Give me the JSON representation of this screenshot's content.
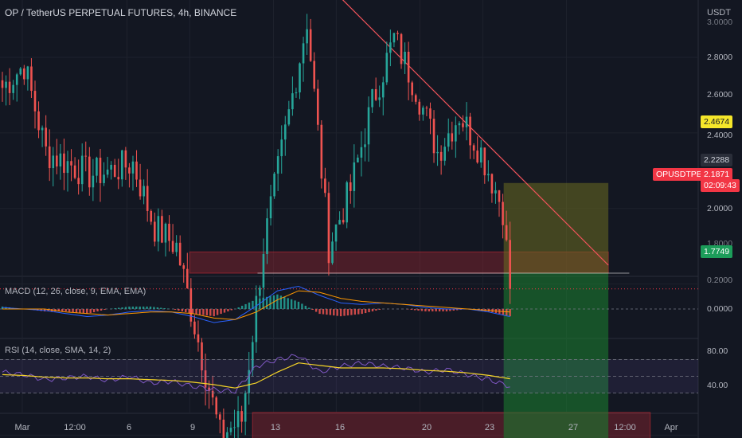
{
  "header": {
    "title": "OP / TetherUS PERPETUAL FUTURES, 4h, BINANCE",
    "currency": "USDT"
  },
  "price_axis": {
    "ticks": [
      "2.8000",
      "2.6000",
      "2.4000",
      "2.0000",
      "1.8000"
    ],
    "clipped_top_tick": "3.0000"
  },
  "price_tags": {
    "target": {
      "value": "2.4674",
      "color": "#f5e62a"
    },
    "entry": {
      "value": "2.2288",
      "color": "#2a2e39"
    },
    "symbol": {
      "name": "OPUSDTPERP",
      "price": "2.1871",
      "countdown": "02:09:43",
      "color": "#f23645"
    },
    "stop": {
      "value": "1.7749",
      "color": "#1c9d5a"
    }
  },
  "macd": {
    "label": "MACD (12, 26, close, 9, EMA, EMA)",
    "ticks": [
      "0.2000",
      "0.0000"
    ]
  },
  "rsi": {
    "label": "RSI (14, close, SMA, 14, 2)",
    "ticks": [
      "80.00",
      "40.00"
    ]
  },
  "time_axis": {
    "labels": [
      "Mar",
      "12:00",
      "6",
      "9",
      "13",
      "16",
      "20",
      "23",
      "27",
      "12:00",
      "Apr"
    ]
  },
  "colors": {
    "bull": "#26a69a",
    "bear": "#ef5350",
    "trendline": "#f2545b",
    "macd_line": "#2962ff",
    "signal_line": "#ff9800",
    "rsi_line": "#7e57c2",
    "rsi_ma": "#f5d428",
    "zone_red": "#b22833",
    "zone_green": "#1b7a2e",
    "zone_olive": "#6b6b20"
  },
  "chart_data": [
    {
      "type": "candlestick",
      "title": "OP / TetherUS PERPETUAL FUTURES, 4h, BINANCE",
      "interval": "4h",
      "ylim": [
        1.65,
        3.05
      ],
      "last_price": 2.1871,
      "close_path": [
        {
          "date": "2023-03-01",
          "close": 2.72
        },
        {
          "date": "2023-03-02",
          "close": 2.78
        },
        {
          "date": "2023-03-03",
          "close": 2.55
        },
        {
          "date": "2023-03-04",
          "close": 2.52
        },
        {
          "date": "2023-03-05",
          "close": 2.49
        },
        {
          "date": "2023-03-06",
          "close": 2.5
        },
        {
          "date": "2023-03-07",
          "close": 2.52
        },
        {
          "date": "2023-03-08",
          "close": 2.35
        },
        {
          "date": "2023-03-09",
          "close": 2.3
        },
        {
          "date": "2023-03-10",
          "close": 2.05
        },
        {
          "date": "2023-03-11",
          "close": 1.8
        },
        {
          "date": "2023-03-12",
          "close": 1.84
        },
        {
          "date": "2023-03-13",
          "close": 2.3
        },
        {
          "date": "2023-03-14",
          "close": 2.6
        },
        {
          "date": "2023-03-15",
          "close": 2.9
        },
        {
          "date": "2023-03-16",
          "close": 2.3
        },
        {
          "date": "2023-03-17",
          "close": 2.45
        },
        {
          "date": "2023-03-18",
          "close": 2.68
        },
        {
          "date": "2023-03-19",
          "close": 2.85
        },
        {
          "date": "2023-03-20",
          "close": 2.72
        },
        {
          "date": "2023-03-21",
          "close": 2.55
        },
        {
          "date": "2023-03-22",
          "close": 2.65
        },
        {
          "date": "2023-03-23",
          "close": 2.55
        },
        {
          "date": "2023-03-24",
          "close": 2.4
        },
        {
          "date": "2023-03-24",
          "close": 2.1871
        }
      ],
      "trendline": [
        {
          "date": "2023-03-14",
          "price": 3.08
        },
        {
          "date": "2023-03-29",
          "price": 2.25
        }
      ],
      "zones": [
        {
          "name": "resistance",
          "from": 2.2288,
          "to": 2.285
        },
        {
          "name": "support",
          "from": 1.7749,
          "to": 1.86
        },
        {
          "name": "take-profit",
          "from": 2.2288,
          "to": 2.4674
        },
        {
          "name": "loss",
          "from": 1.7749,
          "to": 2.2288
        }
      ]
    },
    {
      "type": "line",
      "title": "MACD (12, 26, close, 9, EMA, EMA)",
      "ylim": [
        -0.12,
        0.23
      ],
      "series": [
        {
          "values": [
            0.01,
            0.0,
            -0.01,
            -0.03,
            -0.05,
            -0.04,
            -0.02,
            -0.01,
            -0.02,
            -0.05,
            -0.09,
            -0.07,
            0.02,
            0.12,
            0.15,
            0.09,
            0.04,
            0.03,
            0.04,
            0.03,
            0.01,
            0.0,
            0.0,
            -0.02,
            -0.05
          ]
        },
        {
          "values": [
            0.0,
            0.0,
            0.0,
            -0.02,
            -0.03,
            -0.04,
            -0.03,
            -0.02,
            -0.02,
            -0.03,
            -0.06,
            -0.07,
            -0.02,
            0.06,
            0.12,
            0.11,
            0.07,
            0.05,
            0.04,
            0.03,
            0.02,
            0.01,
            0.0,
            -0.01,
            -0.02
          ]
        }
      ]
    },
    {
      "type": "line",
      "title": "RSI (14, close, SMA, 14, 2)",
      "ylim": [
        20,
        90
      ],
      "bands": [
        30,
        50,
        70
      ],
      "series": [
        {
          "values": [
            55,
            52,
            46,
            48,
            50,
            45,
            50,
            42,
            44,
            38,
            34,
            32,
            62,
            70,
            75,
            55,
            62,
            66,
            62,
            60,
            55,
            58,
            52,
            46,
            38
          ]
        },
        {
          "values": [
            52,
            51,
            49,
            48,
            48,
            47,
            47,
            46,
            45,
            43,
            40,
            36,
            42,
            55,
            66,
            63,
            60,
            60,
            60,
            59,
            57,
            56,
            54,
            51,
            47
          ]
        }
      ]
    }
  ]
}
